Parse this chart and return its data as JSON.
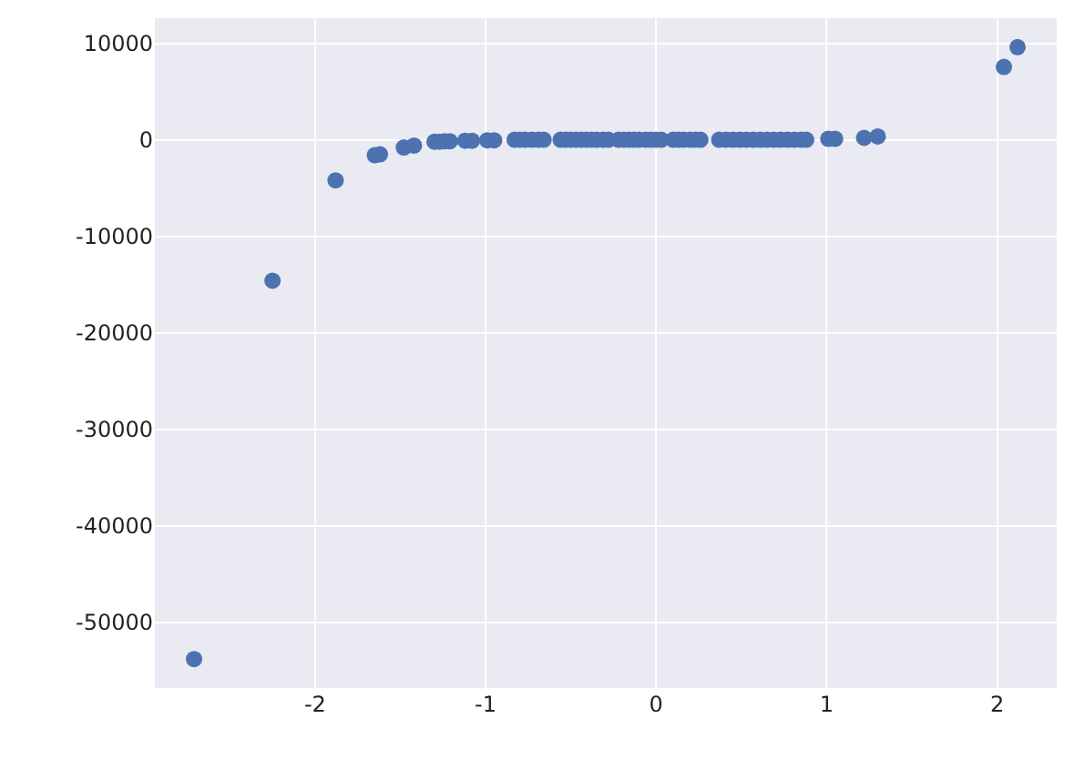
{
  "chart_data": {
    "type": "scatter",
    "marker": "circle",
    "grid": true,
    "xlim": [
      -2.94,
      2.35
    ],
    "xticks": [
      -2,
      -1,
      0,
      1,
      2
    ],
    "ylim": [
      -56800,
      12600
    ],
    "yticks": [
      -50000,
      -40000,
      -30000,
      -20000,
      -10000,
      0,
      10000
    ],
    "series": [
      {
        "color": "#4c72b0",
        "x": [
          -2.71,
          -2.25,
          -1.88,
          -1.65,
          -1.62,
          -1.48,
          -1.42,
          -1.3,
          -1.27,
          -1.24,
          -1.21,
          -1.12,
          -1.08,
          -0.99,
          -0.95,
          -0.83,
          -0.8,
          -0.77,
          -0.73,
          -0.69,
          -0.66,
          -0.56,
          -0.53,
          -0.5,
          -0.47,
          -0.44,
          -0.41,
          -0.38,
          -0.35,
          -0.31,
          -0.28,
          -0.22,
          -0.19,
          -0.16,
          -0.13,
          -0.1,
          -0.06,
          -0.03,
          0.0,
          0.03,
          0.1,
          0.13,
          0.16,
          0.2,
          0.23,
          0.26,
          0.37,
          0.41,
          0.45,
          0.49,
          0.53,
          0.57,
          0.61,
          0.65,
          0.69,
          0.73,
          0.77,
          0.81,
          0.85,
          0.88,
          1.01,
          1.05,
          1.22,
          1.3,
          2.04,
          2.12
        ],
        "values": [
          -53800,
          -14600,
          -4200,
          -1600,
          -1500,
          -800,
          -600,
          -200,
          -200,
          -150,
          -150,
          -100,
          -100,
          -50,
          -50,
          0,
          0,
          0,
          0,
          0,
          0,
          0,
          0,
          0,
          0,
          0,
          0,
          0,
          0,
          0,
          0,
          0,
          0,
          0,
          0,
          0,
          0,
          0,
          0,
          0,
          0,
          0,
          0,
          0,
          0,
          0,
          0,
          0,
          0,
          0,
          0,
          0,
          0,
          0,
          0,
          0,
          0,
          0,
          0,
          0,
          100,
          100,
          200,
          350,
          7550,
          9600
        ]
      }
    ]
  }
}
